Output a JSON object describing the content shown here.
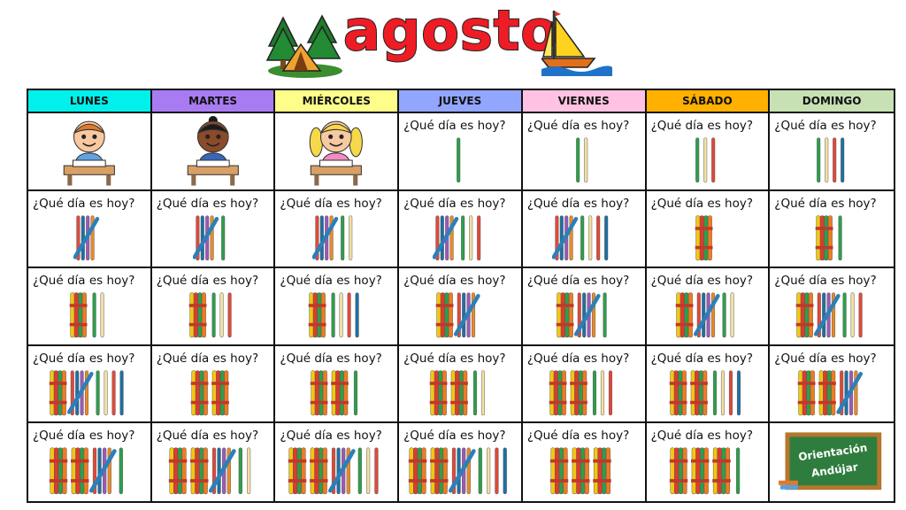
{
  "month": "agosto",
  "days": [
    "LUNES",
    "MARTES",
    "MIÉRCOLES",
    "JUEVES",
    "VIERNES",
    "SÁBADO",
    "DOMINGO"
  ],
  "header_colors": [
    "#00f0ec",
    "#a97bf3",
    "#fffd8a",
    "#93a6ff",
    "#ffc2e2",
    "#ffb000",
    "#c7e0b4"
  ],
  "question": "¿Qué día es hoy?",
  "blank_cells": 3,
  "month_days": [
    1,
    2,
    3,
    4,
    5,
    6,
    7,
    8,
    9,
    10,
    11,
    12,
    13,
    14,
    15,
    16,
    17,
    18,
    19,
    20,
    21,
    22,
    23,
    24,
    25,
    26,
    27,
    28,
    29,
    30,
    31
  ],
  "logo": {
    "line1": "Orientación",
    "line2": "Andújar"
  }
}
